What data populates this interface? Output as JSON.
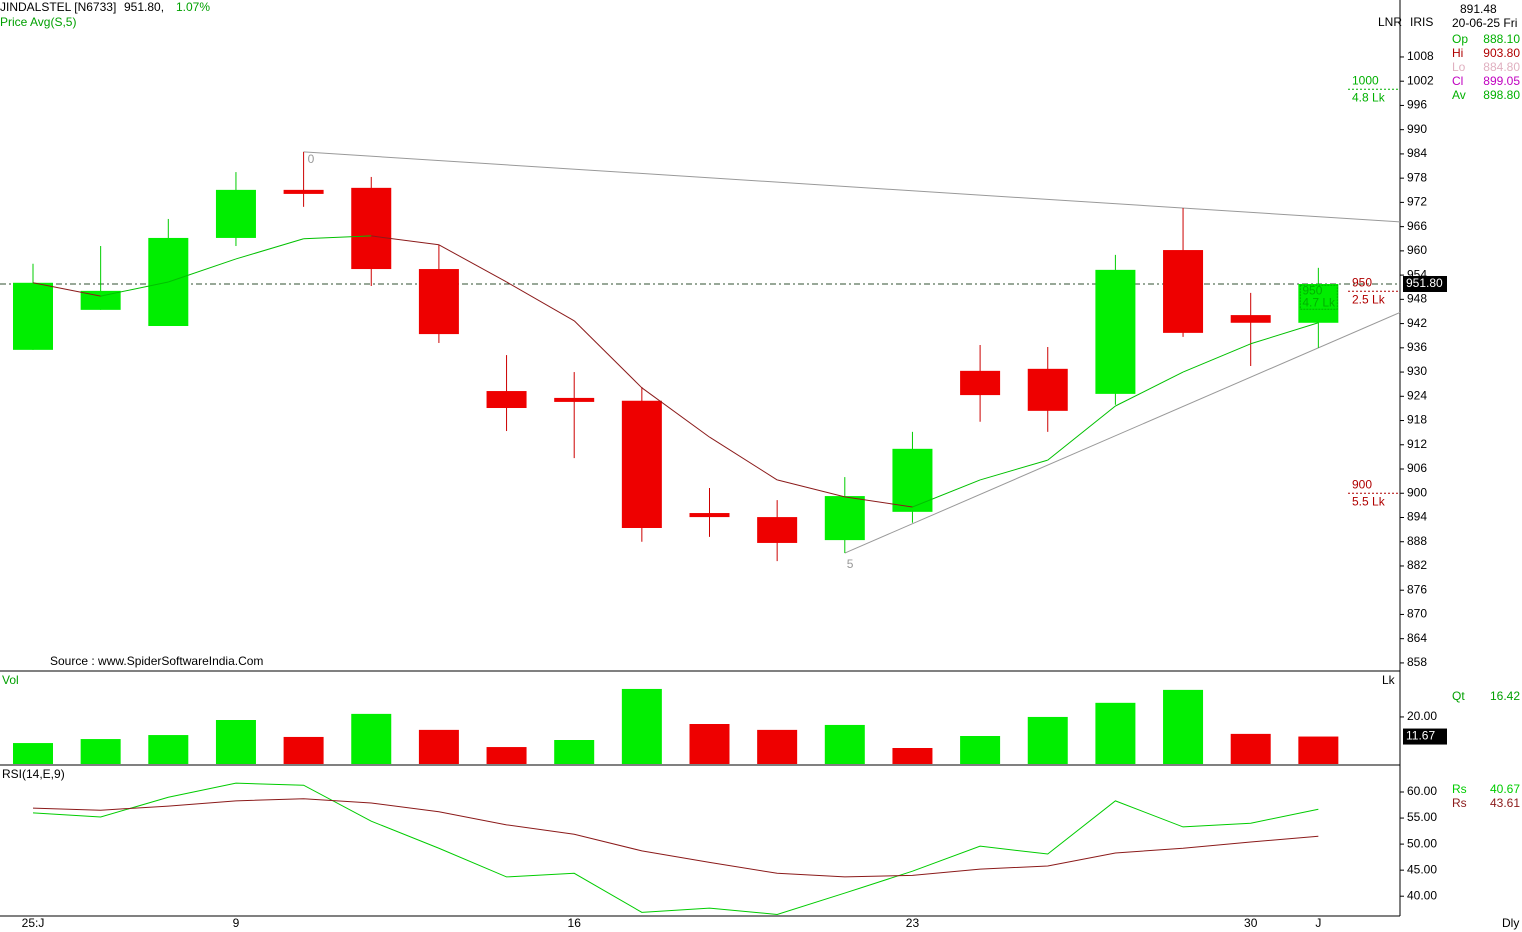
{
  "header": {
    "symbol": "JINDALSTEL [N6733]",
    "price": "951.80,",
    "change": "1.07%",
    "source": "Source : www.SpiderSoftwareIndia.Com"
  },
  "info_panel": {
    "mode": "LNR",
    "indicator": "IRIS",
    "cursor_price": "891.48",
    "date": "20-06-25 Fri",
    "rows": [
      {
        "label": "Op",
        "value": "888.10",
        "color": "#00b000"
      },
      {
        "label": "Hi",
        "value": "903.80",
        "color": "#b00000"
      },
      {
        "label": "Lo",
        "value": "884.80",
        "color": "#e0b0c0"
      },
      {
        "label": "Cl",
        "value": "899.05",
        "color": "#c000c0"
      },
      {
        "label": "Av",
        "value": "898.80",
        "color": "#00b000"
      }
    ],
    "period": "Dly"
  },
  "chart_data": [
    {
      "type": "candlestick",
      "categories": [
        "25:J",
        null,
        null,
        "9",
        null,
        null,
        null,
        null,
        "16",
        null,
        null,
        null,
        null,
        "23",
        null,
        null,
        null,
        null,
        "30",
        "J"
      ],
      "open": [
        935.5,
        945.4,
        941.4,
        963.2,
        975.1,
        975.6,
        955.5,
        925.3,
        923.6,
        922.9,
        895.1,
        894.1,
        888.4,
        895.4,
        930.3,
        930.8,
        924.6,
        960.2,
        944.1,
        942.2
      ],
      "high": [
        956.8,
        961.2,
        967.9,
        979.5,
        984.5,
        978.3,
        961.5,
        934.2,
        930.0,
        926.3,
        901.3,
        898.3,
        904.0,
        915.2,
        936.7,
        936.2,
        959.0,
        970.6,
        949.6,
        955.8
      ],
      "low": [
        935.5,
        945.4,
        941.4,
        961.2,
        970.9,
        951.3,
        937.2,
        915.4,
        908.7,
        888.0,
        889.2,
        883.2,
        885.2,
        892.7,
        917.7,
        915.2,
        921.9,
        938.7,
        931.5,
        936.0
      ],
      "close": [
        952.1,
        950.1,
        963.2,
        975.1,
        974.1,
        955.5,
        939.4,
        921.1,
        922.9,
        891.4,
        894.1,
        887.7,
        899.3,
        911.0,
        924.3,
        920.4,
        955.3,
        939.7,
        942.2,
        951.8
      ],
      "up_color": "#00ee00",
      "down_color": "#ee0000",
      "avg": {
        "name": "Price Avg(S,5)",
        "values": [
          952.1,
          948.8,
          952.3,
          958.0,
          963.0,
          963.7,
          961.5,
          952.3,
          942.7,
          926.1,
          913.9,
          903.3,
          899.1,
          896.6,
          903.3,
          908.2,
          921.6,
          930.0,
          937.0,
          942.2
        ],
        "up_color": "#00c000",
        "down_color": "#8b1a1a"
      },
      "ylim": [
        856,
        1022.1
      ],
      "yticks": [
        858,
        864,
        870,
        876,
        882,
        888,
        894,
        900,
        906,
        912,
        918,
        924,
        930,
        936,
        942,
        948,
        954,
        960,
        966,
        972,
        978,
        984,
        990,
        996,
        1002,
        1008
      ],
      "last_price": {
        "value": 951.8,
        "label": "951.80"
      },
      "level_labels": [
        {
          "value": 1000,
          "volume": "4.8 Lk",
          "color": "#00b000"
        },
        {
          "value": 950,
          "volume": "2.5 Lk",
          "color": "#b00000"
        },
        {
          "value": 900,
          "volume": "5.5 Lk",
          "color": "#b00000"
        }
      ],
      "current_label": {
        "value": 950,
        "volume": "4.7 Lk",
        "color": "#00b000"
      },
      "trendlines": [
        {
          "label": "0",
          "start": [
            4,
            984.5
          ],
          "end": [
            17,
            970.6
          ]
        },
        {
          "label": "5",
          "start": [
            12,
            885.2
          ],
          "end": [
            19,
            936.0
          ]
        }
      ]
    },
    {
      "type": "bar",
      "title": "Vol",
      "unit": "Lk",
      "values": [
        8.9,
        10.6,
        12.3,
        18.7,
        11.5,
        21.3,
        14.5,
        7.2,
        10.2,
        31.9,
        17.0,
        14.5,
        16.6,
        6.8,
        11.9,
        20.0,
        26.0,
        31.5,
        12.8,
        11.67
      ],
      "colors": [
        "#00ee00",
        "#00ee00",
        "#00ee00",
        "#00ee00",
        "#ee0000",
        "#00ee00",
        "#ee0000",
        "#ee0000",
        "#00ee00",
        "#00ee00",
        "#ee0000",
        "#ee0000",
        "#00ee00",
        "#ee0000",
        "#00ee00",
        "#00ee00",
        "#00ee00",
        "#00ee00",
        "#ee0000",
        "#ee0000"
      ],
      "ylim": [
        0,
        39.1
      ],
      "yticks": [
        {
          "value": 20,
          "label": "20.00"
        }
      ],
      "qt": {
        "label": "Qt",
        "value": 16.42
      }
    },
    {
      "type": "line",
      "title": "RSI(14,E,9)",
      "series": [
        {
          "name": "Rs",
          "color": "#00cc00",
          "legend_value": 40.67,
          "values": [
            56.0,
            55.2,
            59.0,
            61.7,
            61.3,
            54.4,
            49.2,
            43.7,
            44.4,
            36.9,
            37.7,
            36.5,
            40.6,
            44.8,
            49.6,
            48.1,
            58.3,
            53.3,
            54.0,
            56.7
          ]
        },
        {
          "name": "Rs",
          "color": "#8b1a1a",
          "legend_value": 43.61,
          "values": [
            56.9,
            56.5,
            57.3,
            58.3,
            58.7,
            57.9,
            56.2,
            53.7,
            51.9,
            48.7,
            46.5,
            44.4,
            43.7,
            44.0,
            45.2,
            45.8,
            48.3,
            49.2,
            50.4,
            51.5
          ]
        }
      ],
      "ylim": [
        36.2,
        64.8
      ],
      "yticks": [
        {
          "value": 40,
          "label": "40.00"
        },
        {
          "value": 45,
          "label": "45.00"
        },
        {
          "value": 50,
          "label": "50.00"
        },
        {
          "value": 55,
          "label": "55.00"
        },
        {
          "value": 60,
          "label": "60.00"
        }
      ]
    }
  ]
}
